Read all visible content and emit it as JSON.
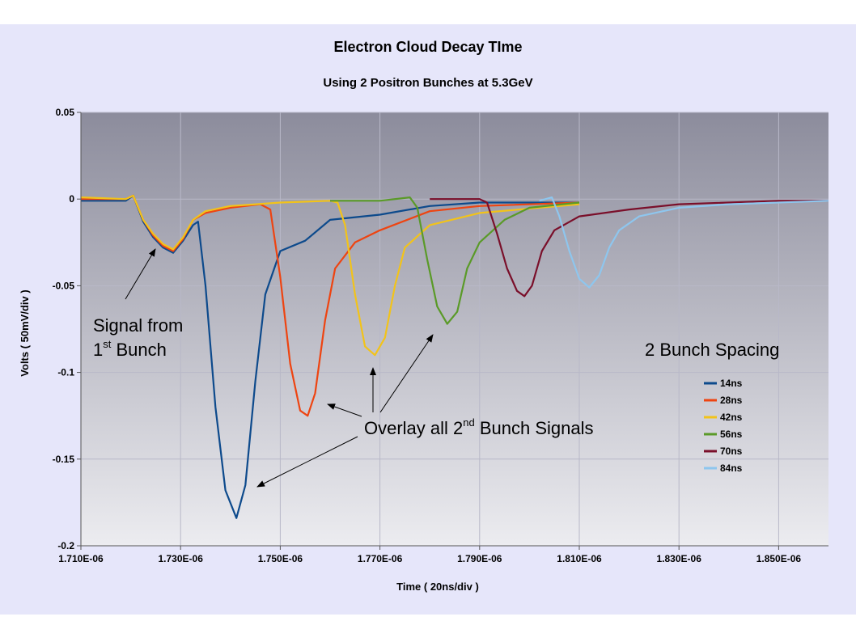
{
  "chart_data": {
    "type": "line",
    "title": "Electron Cloud Decay TIme",
    "subtitle": "Using 2 Positron Bunches at 5.3GeV",
    "xlabel": "Time ( 20ns/div )",
    "ylabel": "Volts ( 50mV/div )",
    "xlim": [
      1.71e-06,
      1.86e-06
    ],
    "ylim": [
      -0.2,
      0.05
    ],
    "x_ticks": [
      "1.710E-06",
      "1.730E-06",
      "1.750E-06",
      "1.770E-06",
      "1.790E-06",
      "1.810E-06",
      "1.830E-06",
      "1.850E-06"
    ],
    "y_ticks": [
      "0.05",
      "0",
      "-0.05",
      "-0.1",
      "-0.15",
      "-0.2"
    ],
    "grid": true,
    "legend_title": "2 Bunch Spacing",
    "legend_position": "right",
    "colors": {
      "background": "#e6e6fa",
      "plot_top": "#8c8c9c",
      "plot_bottom": "#ececf0",
      "grid": "#b8b8c8"
    },
    "series": [
      {
        "name": "14ns",
        "color": "#0d4a8c",
        "values": [
          [
            1.71e-06,
            -0.001
          ],
          [
            1.719e-06,
            -0.001
          ],
          [
            1.7205e-06,
            0.002
          ],
          [
            1.7225e-06,
            -0.013
          ],
          [
            1.7245e-06,
            -0.022
          ],
          [
            1.7265e-06,
            -0.028
          ],
          [
            1.7285e-06,
            -0.031
          ],
          [
            1.7305e-06,
            -0.024
          ],
          [
            1.7325e-06,
            -0.015
          ],
          [
            1.7335e-06,
            -0.013
          ],
          [
            1.735e-06,
            -0.05
          ],
          [
            1.737e-06,
            -0.12
          ],
          [
            1.739e-06,
            -0.168
          ],
          [
            1.7412e-06,
            -0.184
          ],
          [
            1.743e-06,
            -0.165
          ],
          [
            1.745e-06,
            -0.105
          ],
          [
            1.747e-06,
            -0.055
          ],
          [
            1.75e-06,
            -0.03
          ],
          [
            1.755e-06,
            -0.024
          ],
          [
            1.76e-06,
            -0.012
          ],
          [
            1.77e-06,
            -0.009
          ],
          [
            1.78e-06,
            -0.004
          ],
          [
            1.79e-06,
            -0.002
          ],
          [
            1.81e-06,
            -0.002
          ]
        ]
      },
      {
        "name": "28ns",
        "color": "#ee4411",
        "values": [
          [
            1.71e-06,
            0.0
          ],
          [
            1.719e-06,
            0.0
          ],
          [
            1.7205e-06,
            0.002
          ],
          [
            1.7225e-06,
            -0.012
          ],
          [
            1.7245e-06,
            -0.021
          ],
          [
            1.7265e-06,
            -0.027
          ],
          [
            1.7285e-06,
            -0.03
          ],
          [
            1.7305e-06,
            -0.023
          ],
          [
            1.7325e-06,
            -0.012
          ],
          [
            1.735e-06,
            -0.008
          ],
          [
            1.74e-06,
            -0.005
          ],
          [
            1.746e-06,
            -0.003
          ],
          [
            1.748e-06,
            -0.006
          ],
          [
            1.75e-06,
            -0.045
          ],
          [
            1.752e-06,
            -0.095
          ],
          [
            1.754e-06,
            -0.122
          ],
          [
            1.7555e-06,
            -0.125
          ],
          [
            1.757e-06,
            -0.112
          ],
          [
            1.759e-06,
            -0.07
          ],
          [
            1.761e-06,
            -0.04
          ],
          [
            1.765e-06,
            -0.025
          ],
          [
            1.77e-06,
            -0.018
          ],
          [
            1.78e-06,
            -0.007
          ],
          [
            1.79e-06,
            -0.004
          ],
          [
            1.81e-06,
            -0.002
          ]
        ]
      },
      {
        "name": "42ns",
        "color": "#f2c31a",
        "values": [
          [
            1.71e-06,
            0.001
          ],
          [
            1.719e-06,
            0.0
          ],
          [
            1.7205e-06,
            0.002
          ],
          [
            1.7225e-06,
            -0.012
          ],
          [
            1.7245e-06,
            -0.02
          ],
          [
            1.7265e-06,
            -0.026
          ],
          [
            1.7285e-06,
            -0.029
          ],
          [
            1.7305e-06,
            -0.022
          ],
          [
            1.7325e-06,
            -0.012
          ],
          [
            1.735e-06,
            -0.007
          ],
          [
            1.74e-06,
            -0.004
          ],
          [
            1.75e-06,
            -0.002
          ],
          [
            1.76e-06,
            -0.001
          ],
          [
            1.7615e-06,
            -0.002
          ],
          [
            1.763e-06,
            -0.015
          ],
          [
            1.765e-06,
            -0.055
          ],
          [
            1.767e-06,
            -0.085
          ],
          [
            1.769e-06,
            -0.09
          ],
          [
            1.771e-06,
            -0.08
          ],
          [
            1.773e-06,
            -0.05
          ],
          [
            1.775e-06,
            -0.028
          ],
          [
            1.78e-06,
            -0.015
          ],
          [
            1.79e-06,
            -0.008
          ],
          [
            1.81e-06,
            -0.003
          ]
        ]
      },
      {
        "name": "56ns",
        "color": "#5a9a28",
        "values": [
          [
            1.76e-06,
            -0.001
          ],
          [
            1.77e-06,
            -0.001
          ],
          [
            1.776e-06,
            0.001
          ],
          [
            1.7775e-06,
            -0.005
          ],
          [
            1.7795e-06,
            -0.035
          ],
          [
            1.7815e-06,
            -0.062
          ],
          [
            1.7835e-06,
            -0.072
          ],
          [
            1.7855e-06,
            -0.065
          ],
          [
            1.7875e-06,
            -0.04
          ],
          [
            1.79e-06,
            -0.025
          ],
          [
            1.795e-06,
            -0.012
          ],
          [
            1.8e-06,
            -0.005
          ],
          [
            1.81e-06,
            -0.002
          ]
        ]
      },
      {
        "name": "70ns",
        "color": "#7a0f2a",
        "values": [
          [
            1.78e-06,
            0.0
          ],
          [
            1.79e-06,
            0.0
          ],
          [
            1.7915e-06,
            -0.002
          ],
          [
            1.7935e-06,
            -0.02
          ],
          [
            1.7955e-06,
            -0.04
          ],
          [
            1.7975e-06,
            -0.053
          ],
          [
            1.799e-06,
            -0.056
          ],
          [
            1.8005e-06,
            -0.05
          ],
          [
            1.8025e-06,
            -0.03
          ],
          [
            1.805e-06,
            -0.018
          ],
          [
            1.81e-06,
            -0.01
          ],
          [
            1.82e-06,
            -0.006
          ],
          [
            1.83e-06,
            -0.003
          ],
          [
            1.85e-06,
            -0.001
          ],
          [
            1.86e-06,
            -0.001
          ]
        ]
      },
      {
        "name": "84ns",
        "color": "#8ec6ee",
        "values": [
          [
            1.802e-06,
            -0.001
          ],
          [
            1.8045e-06,
            0.001
          ],
          [
            1.806e-06,
            -0.01
          ],
          [
            1.808e-06,
            -0.03
          ],
          [
            1.81e-06,
            -0.046
          ],
          [
            1.812e-06,
            -0.051
          ],
          [
            1.814e-06,
            -0.044
          ],
          [
            1.816e-06,
            -0.028
          ],
          [
            1.818e-06,
            -0.018
          ],
          [
            1.822e-06,
            -0.01
          ],
          [
            1.83e-06,
            -0.005
          ],
          [
            1.84e-06,
            -0.003
          ],
          [
            1.86e-06,
            -0.001
          ]
        ]
      }
    ],
    "annotations": {
      "first_bunch": {
        "line1": "Signal from",
        "line2_prefix": "1",
        "line2_sup": "st",
        "line2_suffix": " Bunch"
      },
      "overlay": {
        "prefix": "Overlay  all 2",
        "sup": "nd",
        "suffix": " Bunch Signals"
      }
    }
  }
}
